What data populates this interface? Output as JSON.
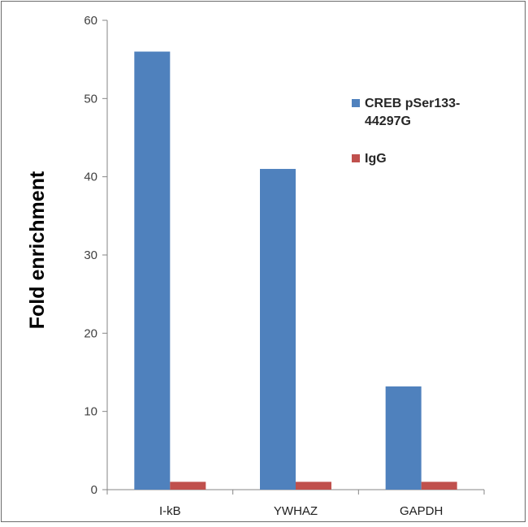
{
  "chart_data": {
    "type": "bar",
    "title": "",
    "xlabel": "",
    "ylabel": "Fold enrichment",
    "categories": [
      "I-kB",
      "YWHAZ",
      "GAPDH"
    ],
    "series": [
      {
        "name": "CREB pSer133-44297G",
        "legend_lines": [
          "CREB pSer133-",
          "44297G"
        ],
        "color": "#4f81bd",
        "values": [
          56,
          41,
          13.2
        ]
      },
      {
        "name": "IgG",
        "legend_lines": [
          "IgG"
        ],
        "color": "#c0504d",
        "values": [
          1,
          1,
          1
        ]
      }
    ],
    "ylim": [
      0,
      60
    ],
    "yticks": [
      0,
      10,
      20,
      30,
      40,
      50,
      60
    ],
    "grid": false,
    "legend_position": "right"
  }
}
